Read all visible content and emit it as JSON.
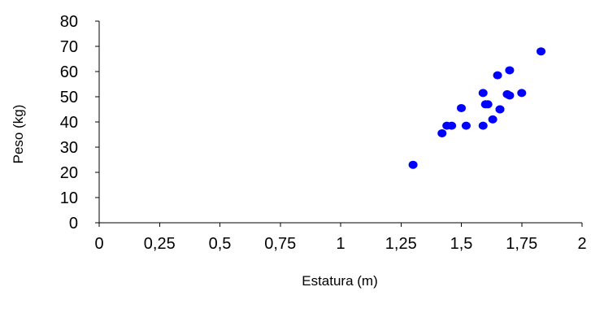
{
  "chart_data": {
    "type": "scatter",
    "title": "",
    "xlabel": "Estatura (m)",
    "ylabel": "Peso (kg)",
    "xlim": [
      0,
      2
    ],
    "ylim": [
      0,
      80
    ],
    "x_ticks": [
      "0",
      "0,25",
      "0,5",
      "0,75",
      "1",
      "1,25",
      "1,5",
      "1,75",
      "2"
    ],
    "y_ticks": [
      "0",
      "10",
      "20",
      "30",
      "40",
      "50",
      "60",
      "70",
      "80"
    ],
    "grid": false,
    "legend": "none",
    "marker_color": "#0000ff",
    "series": [
      {
        "x": [
          1.3,
          1.42,
          1.44,
          1.46,
          1.5,
          1.52,
          1.59,
          1.59,
          1.6,
          1.61,
          1.63,
          1.65,
          1.66,
          1.66,
          1.69,
          1.7,
          1.7,
          1.75,
          1.83
        ],
        "y": [
          23,
          35.5,
          38.5,
          38.5,
          45.5,
          38.5,
          38.5,
          51.5,
          47,
          47,
          41,
          58.5,
          45,
          45,
          51,
          60.5,
          50.5,
          51.5,
          68
        ]
      }
    ]
  }
}
